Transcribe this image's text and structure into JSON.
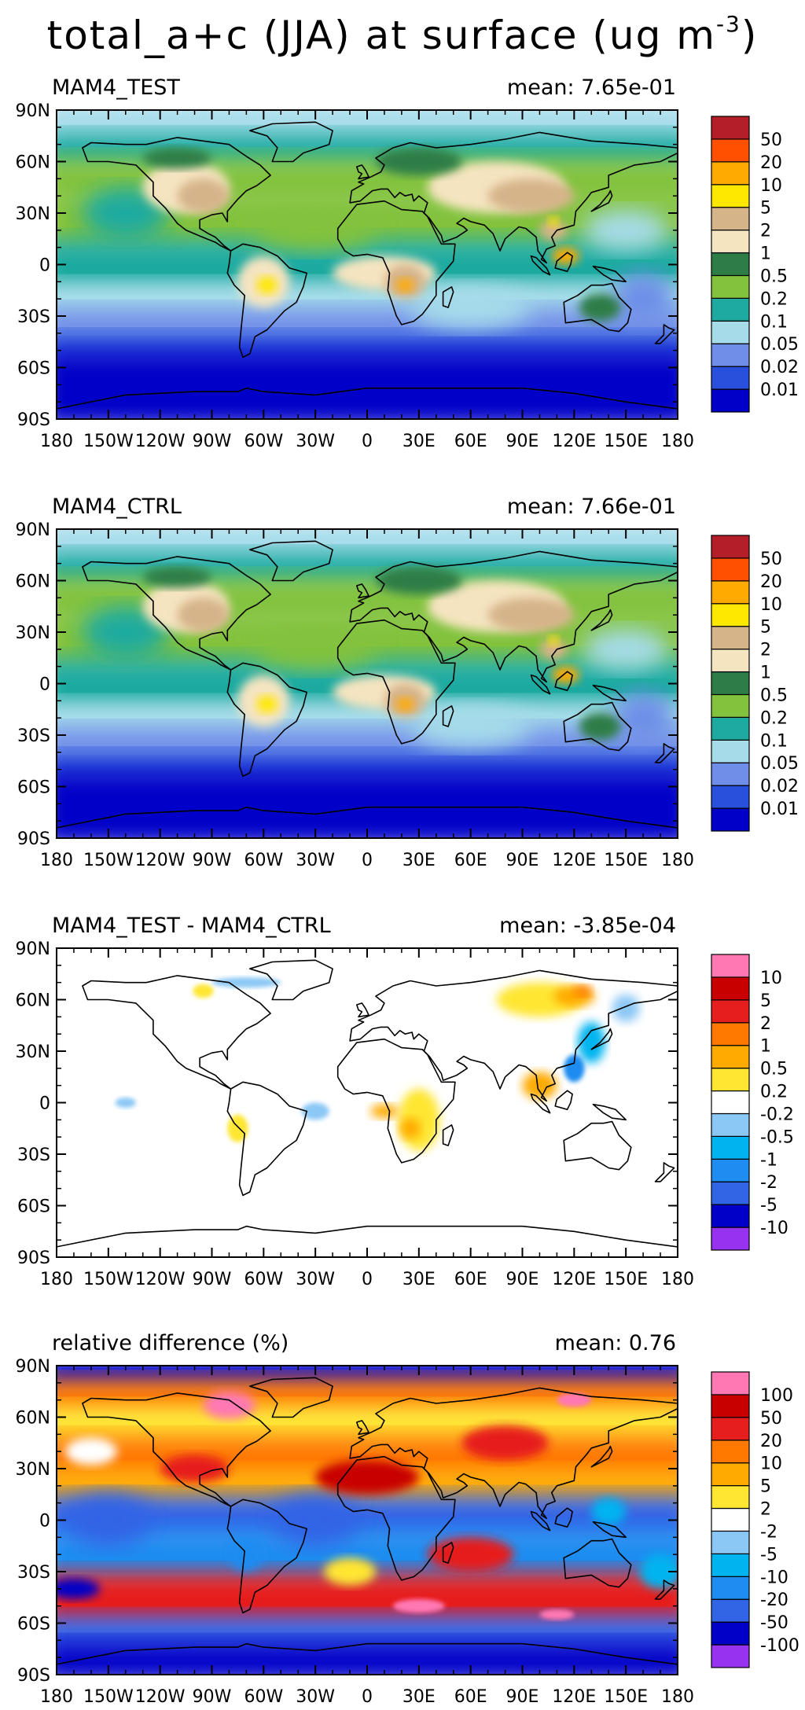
{
  "figure": {
    "title_main": "total_a+c (JJA) at surface (ug m",
    "title_exponent": "-3",
    "title_close": ")"
  },
  "axes": {
    "lat_ticks": [
      "90N",
      "60N",
      "30N",
      "0",
      "30S",
      "60S",
      "90S"
    ],
    "lon_ticks": [
      "180",
      "150W",
      "120W",
      "90W",
      "60W",
      "30W",
      "0",
      "30E",
      "60E",
      "90E",
      "120E",
      "150E",
      "180"
    ]
  },
  "panels": [
    {
      "key": "test",
      "title": "MAM4_TEST",
      "mean_label": "mean:",
      "mean_value": "7.65e-01",
      "map_style": "absolute",
      "colorbar": {
        "colors": [
          "#0000c8",
          "#2850dc",
          "#6e8ee8",
          "#a6dcea",
          "#1eaaa0",
          "#82c23c",
          "#2e7d46",
          "#f5e4c0",
          "#d6b48a",
          "#ffe800",
          "#ffaa00",
          "#ff5000",
          "#b41e28"
        ],
        "labels": [
          "0.01",
          "0.02",
          "0.05",
          "0.1",
          "0.2",
          "0.5",
          "1",
          "2",
          "5",
          "10",
          "20",
          "50"
        ]
      }
    },
    {
      "key": "ctrl",
      "title": "MAM4_CTRL",
      "mean_label": "mean:",
      "mean_value": "7.66e-01",
      "map_style": "absolute",
      "colorbar": {
        "colors": [
          "#0000c8",
          "#2850dc",
          "#6e8ee8",
          "#a6dcea",
          "#1eaaa0",
          "#82c23c",
          "#2e7d46",
          "#f5e4c0",
          "#d6b48a",
          "#ffe800",
          "#ffaa00",
          "#ff5000",
          "#b41e28"
        ],
        "labels": [
          "0.01",
          "0.02",
          "0.05",
          "0.1",
          "0.2",
          "0.5",
          "1",
          "2",
          "5",
          "10",
          "20",
          "50"
        ]
      }
    },
    {
      "key": "diff",
      "title": "MAM4_TEST - MAM4_CTRL",
      "mean_label": "mean:",
      "mean_value": "-3.85e-04",
      "map_style": "difference",
      "colorbar": {
        "colors": [
          "#9632f0",
          "#0000c8",
          "#3264e6",
          "#1e8cf0",
          "#00b4f0",
          "#8cc8f5",
          "#ffffff",
          "#ffe632",
          "#ffaa00",
          "#ff7800",
          "#e61e1e",
          "#c80000",
          "#ff78b4"
        ],
        "labels": [
          "-10",
          "-5",
          "-2",
          "-1",
          "-0.5",
          "-0.2",
          "0.2",
          "0.5",
          "1",
          "2",
          "5",
          "10"
        ]
      }
    },
    {
      "key": "rel",
      "title": "relative difference (%)",
      "mean_label": "mean:",
      "mean_value": "0.76",
      "map_style": "relative",
      "colorbar": {
        "colors": [
          "#9632f0",
          "#0000c8",
          "#3264e6",
          "#1e8cf0",
          "#00b4f0",
          "#8cc8f5",
          "#ffffff",
          "#ffe632",
          "#ffaa00",
          "#ff7800",
          "#e61e1e",
          "#c80000",
          "#ff78b4"
        ],
        "labels": [
          "-100",
          "-50",
          "-20",
          "-10",
          "-5",
          "-2",
          "2",
          "5",
          "10",
          "20",
          "50",
          "100"
        ]
      }
    }
  ]
}
